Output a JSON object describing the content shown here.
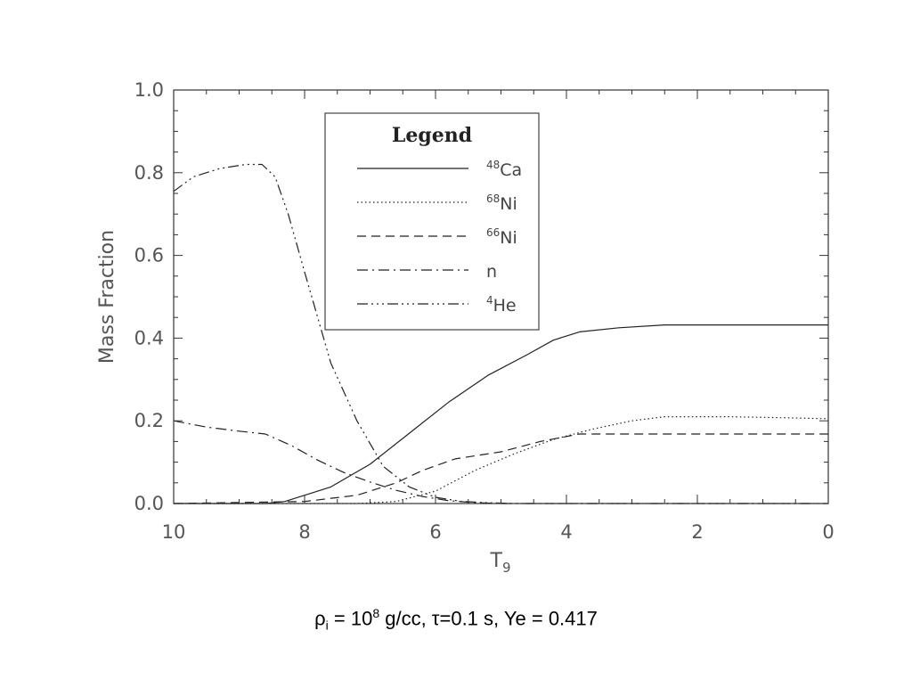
{
  "chart_data": {
    "type": "line",
    "xlabel": "T",
    "xlabel_sub": "9",
    "ylabel": "Mass Fraction",
    "xlim": [
      10,
      0
    ],
    "ylim": [
      0,
      1.0
    ],
    "x_reversed": true,
    "x_ticks": [
      10,
      8,
      6,
      4,
      2,
      0
    ],
    "x_tick_labels": [
      "10",
      "8",
      "6",
      "4",
      "2",
      "0"
    ],
    "y_ticks": [
      0.0,
      0.2,
      0.4,
      0.6,
      0.8,
      1.0
    ],
    "y_tick_labels": [
      "0.0",
      "0.2",
      "0.4",
      "0.6",
      "0.8",
      "1.0"
    ],
    "grid": false,
    "legend": {
      "title": "Legend",
      "placement": "upper-center",
      "entries": [
        {
          "sup": "48",
          "label": "Ca",
          "style": "solid"
        },
        {
          "sup": "68",
          "label": "Ni",
          "style": "dotted"
        },
        {
          "sup": "66",
          "label": "Ni",
          "style": "dashed"
        },
        {
          "sup": "",
          "label": "n",
          "style": "dashdot"
        },
        {
          "sup": "4",
          "label": "He",
          "style": "dashdotdotdot"
        }
      ]
    },
    "series": [
      {
        "name": "48Ca",
        "style": "solid",
        "x": [
          10,
          8.6,
          8.3,
          7.6,
          7.0,
          6.4,
          5.8,
          5.2,
          4.6,
          4.2,
          3.8,
          3.2,
          2.5,
          1.5,
          0
        ],
        "y": [
          0,
          0,
          0.005,
          0.04,
          0.095,
          0.17,
          0.245,
          0.31,
          0.36,
          0.395,
          0.415,
          0.425,
          0.432,
          0.432,
          0.432
        ]
      },
      {
        "name": "68Ni",
        "style": "dotted",
        "x": [
          10,
          7.2,
          6.6,
          6.0,
          5.4,
          4.8,
          4.2,
          3.6,
          3.0,
          2.5,
          1.5,
          0.5,
          0
        ],
        "y": [
          0,
          0,
          0.005,
          0.03,
          0.08,
          0.12,
          0.155,
          0.18,
          0.2,
          0.21,
          0.21,
          0.207,
          0.205
        ]
      },
      {
        "name": "66Ni",
        "style": "dashed",
        "x": [
          10,
          8.0,
          7.2,
          6.6,
          6.2,
          5.7,
          5.0,
          4.4,
          3.8,
          3.0,
          2.0,
          0
        ],
        "y": [
          0,
          0.005,
          0.02,
          0.05,
          0.08,
          0.108,
          0.125,
          0.15,
          0.168,
          0.168,
          0.168,
          0.168
        ]
      },
      {
        "name": "n",
        "style": "dashdot",
        "x": [
          10,
          9.5,
          9.0,
          8.6,
          8.2,
          7.8,
          7.4,
          7.0,
          6.6,
          6.2,
          5.8,
          5.4,
          5.0,
          4.5,
          0
        ],
        "y": [
          0.2,
          0.185,
          0.175,
          0.168,
          0.14,
          0.105,
          0.075,
          0.052,
          0.032,
          0.017,
          0.007,
          0.002,
          0.0,
          0.0,
          0.0
        ]
      },
      {
        "name": "4He",
        "style": "dashdotdotdot",
        "x": [
          10,
          9.7,
          9.3,
          8.9,
          8.65,
          8.45,
          8.25,
          8.0,
          7.6,
          7.2,
          6.8,
          6.4,
          6.0,
          5.6,
          5.2,
          4.8,
          0
        ],
        "y": [
          0.755,
          0.79,
          0.81,
          0.82,
          0.82,
          0.79,
          0.7,
          0.56,
          0.34,
          0.2,
          0.09,
          0.04,
          0.015,
          0.005,
          0.002,
          0.0,
          0.0
        ]
      }
    ]
  },
  "caption": {
    "rho": "ρ",
    "rho_sub": "i",
    "eq1": " = 10",
    "exp": "8",
    "rest": " g/cc, τ=0.1 s, Ye = 0.417"
  }
}
